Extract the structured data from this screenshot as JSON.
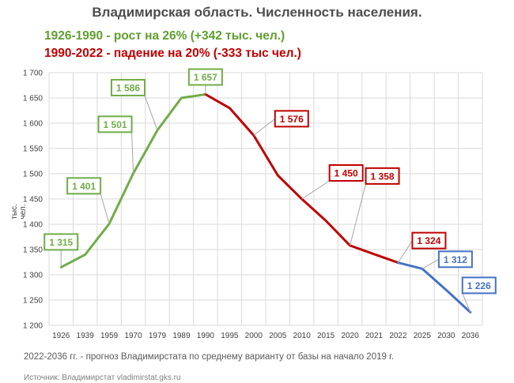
{
  "chart_data": {
    "type": "line",
    "title": "Владимирская область. Численность населения.",
    "subtitle_growth": "1926-1990 - рост на 26% (+342 тыс. чел.)",
    "subtitle_decline": "1990-2022 - падение на 20% (-333 тыс чел.)",
    "ylabel": "тыс. чел.",
    "ylim": [
      1200,
      1700
    ],
    "yticks": [
      1200,
      1250,
      1300,
      1350,
      1400,
      1450,
      1500,
      1550,
      1600,
      1650,
      1700
    ],
    "ytick_labels": [
      "1 200",
      "1 250",
      "1 300",
      "1 350",
      "1 400",
      "1 450",
      "1 500",
      "1 550",
      "1 600",
      "1 650",
      "1 700"
    ],
    "categories": [
      "1926",
      "1939",
      "1959",
      "1970",
      "1979",
      "1989",
      "1990",
      "1995",
      "2000",
      "2005",
      "2010",
      "2015",
      "2020",
      "2021",
      "2022",
      "2025",
      "2030",
      "2036"
    ],
    "values": [
      1315,
      1340,
      1401,
      1501,
      1586,
      1650,
      1657,
      1630,
      1576,
      1497,
      1450,
      1407,
      1358,
      1341,
      1324,
      1312,
      1270,
      1226
    ],
    "grid": true,
    "series": [
      {
        "name": "рост 1926-1990",
        "color": "#70ad47",
        "from": 0,
        "to": 6
      },
      {
        "name": "падение 1990-2022",
        "color": "#c00000",
        "from": 6,
        "to": 14
      },
      {
        "name": "прогноз 2022-2036",
        "color": "#4472c4",
        "from": 14,
        "to": 17
      }
    ],
    "data_labels": [
      {
        "index": 0,
        "text": "1 315",
        "color": "#70ad47"
      },
      {
        "index": 2,
        "text": "1 401",
        "color": "#70ad47"
      },
      {
        "index": 3,
        "text": "1 501",
        "color": "#70ad47"
      },
      {
        "index": 4,
        "text": "1 586",
        "color": "#70ad47"
      },
      {
        "index": 6,
        "text": "1 657",
        "color": "#70ad47"
      },
      {
        "index": 8,
        "text": "1 576",
        "color": "#c00000"
      },
      {
        "index": 10,
        "text": "1 450",
        "color": "#c00000"
      },
      {
        "index": 12,
        "text": "1 358",
        "color": "#c00000"
      },
      {
        "index": 14,
        "text": "1 324",
        "color": "#c00000"
      },
      {
        "index": 15,
        "text": "1 312",
        "color": "#4472c4"
      },
      {
        "index": 17,
        "text": "1 226",
        "color": "#4472c4"
      }
    ],
    "footnote": "2022-2036 гг. - прогноз Владимирстата по среднему варианту от базы на начало 2019 г.",
    "source": "Источник: Владимирстат vladimirstat.gks.ru"
  }
}
